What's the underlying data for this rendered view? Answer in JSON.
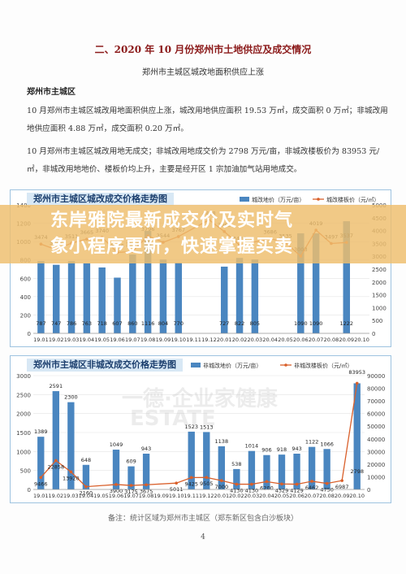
{
  "document": {
    "title": "二、2020 年 10 月份郑州市土地供应及成交情况",
    "subtitle": "郑州市主城区城改地面积供应上涨",
    "section_heading": "郑州市主城区",
    "paragraph1": "10 月郑州市主城区城改用地面积供应上涨，城改用地供应面积 19.53 万㎡，成交面积 0 万㎡；非城改用地供应面积 4.88 万㎡，成交面积 0.20 万㎡。",
    "paragraph2": "10 月郑州市主城区城改用地无成交；非城改用地成交价为 2798 万元/亩，非城改楼板价为 83953 元/㎡，非城改用地地价、楼板价均上升，主要是经开区 1 宗加油加气站用地成交。",
    "source_note": "备注：统计区域为郑州市主城区（郑东新区包含白沙板块）",
    "page_number": "4"
  },
  "overlay": {
    "line1": "东岸雅院最新成交价及实时气",
    "line2": "象小程序更新，快速掌握买卖"
  },
  "watermarks": {
    "w1": "ESTATE",
    "w2": "一德·企业家健康"
  },
  "colors": {
    "bar": "#4a86c0",
    "line": "#d95f2a",
    "title": "#8b1a1a",
    "overlay": "#eebe6e"
  },
  "chart_data": [
    {
      "type": "bar",
      "title": "郑州市主城区城改成交价格走势图",
      "categories": [
        "19.01",
        "19.02",
        "19.03",
        "19.04",
        "19.05",
        "19.06",
        "19.07",
        "19.08",
        "19.09",
        "19.10",
        "19.11",
        "19.12",
        "20.01",
        "20.02",
        "20.03",
        "20.04",
        "20.05",
        "20.06",
        "20.07",
        "20.08",
        "20.09",
        "20.10"
      ],
      "series": [
        {
          "name": "城改地价（万元/亩）",
          "type": "bar",
          "axis": "left",
          "values": [
            787,
            747,
            786,
            763,
            718,
            607,
            860,
            1116,
            804,
            770,
            0,
            0,
            727,
            822,
            805,
            0,
            0,
            1090,
            1090,
            0,
            1222,
            0
          ]
        },
        {
          "name": "城改楼板价（元/㎡）",
          "type": "line",
          "axis": "right",
          "values": [
            3474,
            3257,
            3511,
            3665,
            3740,
            3146,
            3191,
            3796,
            3544,
            3767,
            null,
            4418,
            3963,
            3434,
            null,
            3686,
            3535,
            3003,
            4019,
            3497,
            3537,
            null
          ]
        }
      ],
      "top_labels": [
        "3474",
        "3257",
        "3511",
        "3665",
        "3740",
        "3146",
        "3191",
        "3796",
        "3544",
        "3767",
        "",
        "4418",
        "3963",
        "3434",
        "",
        "3686",
        "3535",
        "3003",
        "4019",
        "3497",
        "3537",
        ""
      ],
      "bottom_labels": [
        "787",
        "747",
        "786",
        "763",
        "718",
        "607",
        "860",
        "1116",
        "804",
        "770",
        "",
        "",
        "727",
        "822",
        "805",
        "",
        "",
        "1090",
        "1090",
        "",
        "1222",
        ""
      ],
      "ylim_left": [
        0,
        1400
      ],
      "yticks_left": [
        "0",
        "200",
        "400",
        "600",
        "800",
        "1000",
        "1200",
        "1400"
      ],
      "ylim_right": [
        0,
        5000
      ],
      "yticks_right": [
        "0",
        "500",
        "1000",
        "1500",
        "2000",
        "2500",
        "3000",
        "3500",
        "4000",
        "4500",
        "5000"
      ],
      "x_tick_labels": [
        "19.01",
        "19.02",
        "19.03",
        "19.04",
        "19.05",
        "19.06",
        "19.07",
        "19.08",
        "19.09",
        "19.10",
        "19.11",
        "19.12",
        "20.01",
        "20.02",
        "20.03",
        "20.04",
        "20.05",
        "20.06",
        "20.07",
        "20.08",
        "20.09",
        "20.10"
      ],
      "legend_position": "top-right"
    },
    {
      "type": "bar",
      "title": "郑州市主城区非城改成交价格走势图",
      "categories": [
        "19.01",
        "19.02",
        "19.03",
        "19.04",
        "19.05",
        "19.06",
        "19.07",
        "19.08",
        "19.09",
        "19.10",
        "19.11",
        "19.12",
        "20.01",
        "20.02",
        "20.03",
        "20.04",
        "20.05",
        "20.06",
        "20.07",
        "20.08",
        "20.09",
        "20.10"
      ],
      "series": [
        {
          "name": "非城改地价（万元/亩）",
          "type": "bar",
          "axis": "left",
          "values": [
            1389,
            2591,
            2300,
            648,
            0,
            1049,
            609,
            943,
            0,
            0,
            1523,
            1513,
            1138,
            538,
            1014,
            906,
            918,
            943,
            1122,
            1066,
            0,
            2798
          ]
        },
        {
          "name": "非城改楼板价（元/㎡）",
          "type": "line",
          "axis": "right",
          "values": [
            9466,
            22858,
            13920,
            2160,
            null,
            3900,
            3175,
            3675,
            null,
            5011,
            9425,
            9505,
            7000,
            4130,
            4130,
            6200,
            4329,
            4129,
            6462,
            4750,
            6987,
            83953
          ]
        }
      ],
      "top_labels": [
        "1389",
        "2591",
        "2300",
        "648",
        "",
        "1049",
        "609",
        "943",
        "",
        "",
        "1523",
        "1513",
        "1138",
        "538",
        "1014",
        "906",
        "918",
        "943",
        "1122",
        "1066",
        "",
        "83953"
      ],
      "bottom_labels": [
        "9466",
        "22858",
        "13920",
        "2160",
        "",
        "3900",
        "3175",
        "3675",
        "",
        "5011",
        "9425",
        "9505",
        "7000",
        "4130",
        "4130",
        "6200",
        "4329",
        "4129",
        "6462",
        "4750",
        "6987",
        "2798"
      ],
      "ylim_left": [
        0,
        3000
      ],
      "yticks_left": [
        "0",
        "500",
        "1000",
        "1500",
        "2000",
        "2500",
        "3000"
      ],
      "ylim_right": [
        0,
        90000
      ],
      "yticks_right": [
        "0",
        "10000",
        "20000",
        "30000",
        "40000",
        "50000",
        "60000",
        "70000",
        "80000",
        "90000"
      ],
      "x_tick_labels": [
        "19.01",
        "19.02",
        "19.03",
        "19.04",
        "19.05",
        "19.06",
        "19.07",
        "19.08",
        "19.09",
        "19.10",
        "19.11",
        "19.12",
        "20.01",
        "20.02",
        "20.03",
        "20.04",
        "20.05",
        "20.06",
        "20.07",
        "20.08",
        "20.09",
        "20.10"
      ],
      "legend_position": "top-right"
    }
  ]
}
